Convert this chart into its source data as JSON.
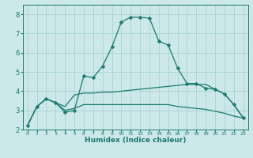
{
  "xlabel": "Humidex (Indice chaleur)",
  "ylabel": "",
  "background_color": "#cce8e8",
  "line_color": "#1a7a6e",
  "grid_color": "#aad4d4",
  "ylim": [
    2,
    8.5
  ],
  "xlim": [
    -0.5,
    23.5
  ],
  "xticks": [
    0,
    1,
    2,
    3,
    4,
    5,
    6,
    7,
    8,
    9,
    10,
    11,
    12,
    13,
    14,
    15,
    16,
    17,
    18,
    19,
    20,
    21,
    22,
    23
  ],
  "yticks": [
    2,
    3,
    4,
    5,
    6,
    7,
    8
  ],
  "series1_x": [
    0,
    1,
    2,
    3,
    4,
    5,
    6,
    7,
    8,
    9,
    10,
    11,
    12,
    13,
    14,
    15,
    16,
    17,
    18,
    19,
    20,
    21,
    22,
    23
  ],
  "series1_y": [
    2.2,
    3.2,
    3.6,
    3.4,
    2.9,
    3.0,
    4.8,
    4.7,
    5.3,
    6.3,
    7.6,
    7.85,
    7.85,
    7.8,
    6.6,
    6.4,
    5.2,
    4.4,
    4.4,
    4.15,
    4.1,
    3.85,
    3.3,
    2.6
  ],
  "series2_x": [
    0,
    1,
    2,
    3,
    4,
    5,
    6,
    7,
    8,
    9,
    10,
    11,
    12,
    13,
    14,
    15,
    16,
    17,
    18,
    19,
    20,
    21,
    22,
    23
  ],
  "series2_y": [
    2.2,
    3.2,
    3.6,
    3.4,
    3.2,
    3.8,
    3.9,
    3.9,
    3.95,
    3.95,
    4.0,
    4.05,
    4.1,
    4.15,
    4.2,
    4.25,
    4.3,
    4.35,
    4.35,
    4.35,
    4.1,
    3.85,
    3.3,
    2.6
  ],
  "series3_x": [
    0,
    1,
    2,
    3,
    4,
    5,
    6,
    7,
    8,
    9,
    10,
    11,
    12,
    13,
    14,
    15,
    16,
    17,
    18,
    19,
    20,
    21,
    22,
    23
  ],
  "series3_y": [
    2.2,
    3.2,
    3.6,
    3.4,
    3.0,
    3.1,
    3.3,
    3.3,
    3.3,
    3.3,
    3.3,
    3.3,
    3.3,
    3.3,
    3.3,
    3.3,
    3.2,
    3.15,
    3.1,
    3.05,
    2.95,
    2.85,
    2.7,
    2.6
  ],
  "xlabel_fontsize": 6.5,
  "xlabel_fontweight": "bold",
  "xtick_fontsize": 4.5,
  "ytick_fontsize": 6
}
